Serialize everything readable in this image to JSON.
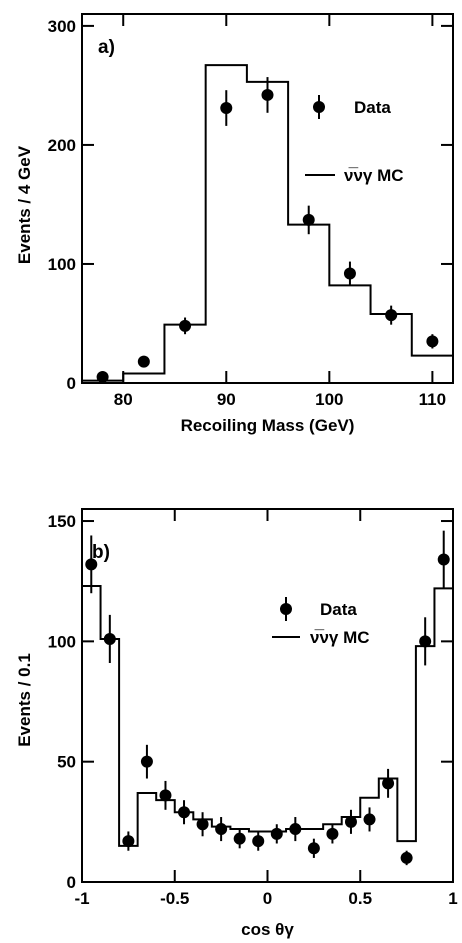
{
  "chart_data": [
    {
      "type": "scatter",
      "panel_label": "a)",
      "xlabel": "Recoiling Mass (GeV)",
      "ylabel": "Events / 4 GeV",
      "xlim": [
        76,
        112
      ],
      "ylim": [
        0,
        310
      ],
      "xticks": [
        80,
        90,
        100,
        110
      ],
      "xtick_labels": [
        "80",
        "90",
        "100",
        "110"
      ],
      "yticks": [
        0,
        100,
        200,
        300
      ],
      "ytick_labels": [
        "0",
        "100",
        "200",
        "300"
      ],
      "legend": {
        "position": "top-right",
        "data_label": "Data",
        "mc_label": "ν̅νγ MC"
      },
      "series": [
        {
          "name": "Data",
          "x": [
            78,
            82,
            86,
            90,
            94,
            98,
            102,
            106,
            110
          ],
          "y": [
            5,
            18,
            48,
            231,
            242,
            137,
            92,
            57,
            35
          ],
          "yerr": [
            2,
            4,
            7,
            15,
            15,
            12,
            10,
            8,
            6
          ]
        },
        {
          "name": "ν̅νγ MC",
          "kind": "histogram",
          "bin_edges": [
            76,
            80,
            84,
            88,
            92,
            96,
            100,
            104,
            108,
            112
          ],
          "values": [
            2,
            8,
            49,
            267,
            253,
            133,
            82,
            58,
            23
          ]
        }
      ]
    },
    {
      "type": "scatter",
      "panel_label": "b)",
      "xlabel": "cos θγ",
      "ylabel": "Events / 0.1",
      "xlim": [
        -1,
        1
      ],
      "ylim": [
        0,
        155
      ],
      "xticks": [
        -1,
        -0.5,
        0,
        0.5,
        1
      ],
      "xtick_labels": [
        "-1",
        "-0.5",
        "0",
        "0.5",
        "1"
      ],
      "yticks": [
        0,
        50,
        100,
        150
      ],
      "ytick_labels": [
        "0",
        "50",
        "100",
        "150"
      ],
      "legend": {
        "position": "top-right",
        "data_label": "Data",
        "mc_label": "ν̅νγ MC"
      },
      "series": [
        {
          "name": "Data",
          "x": [
            -0.95,
            -0.85,
            -0.75,
            -0.65,
            -0.55,
            -0.45,
            -0.35,
            -0.25,
            -0.15,
            -0.05,
            0.05,
            0.15,
            0.25,
            0.35,
            0.45,
            0.55,
            0.65,
            0.75,
            0.85,
            0.95
          ],
          "y": [
            132,
            101,
            17,
            50,
            36,
            29,
            24,
            22,
            18,
            17,
            20,
            22,
            14,
            20,
            25,
            26,
            41,
            10,
            100,
            134
          ],
          "yerr": [
            12,
            10,
            4,
            7,
            6,
            5,
            5,
            5,
            4,
            4,
            4,
            5,
            4,
            4,
            5,
            5,
            6,
            3,
            10,
            12
          ]
        },
        {
          "name": "ν̅νγ MC",
          "kind": "histogram",
          "bin_edges": [
            -1,
            -0.9,
            -0.8,
            -0.7,
            -0.6,
            -0.5,
            -0.4,
            -0.3,
            -0.2,
            -0.1,
            0,
            0.1,
            0.2,
            0.3,
            0.4,
            0.5,
            0.6,
            0.7,
            0.8,
            0.9,
            1
          ],
          "values": [
            123,
            101,
            15,
            37,
            34,
            29,
            26,
            23,
            22,
            21,
            21,
            22,
            22,
            24,
            27,
            35,
            43,
            17,
            98,
            122
          ]
        }
      ]
    }
  ]
}
